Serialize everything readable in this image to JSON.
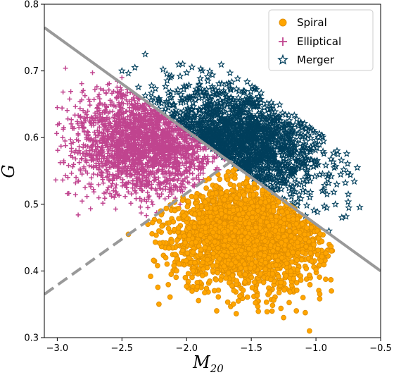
{
  "chart_data": {
    "type": "scatter",
    "title": "",
    "xlabel_main": "M",
    "xlabel_sub": "20",
    "ylabel": "G",
    "xlim": [
      -3.1,
      -0.5
    ],
    "ylim": [
      0.3,
      0.8
    ],
    "xticks": [
      -3.0,
      -2.5,
      -2.0,
      -1.5,
      -1.0,
      -0.5
    ],
    "xtick_labels": [
      "−3.0",
      "−2.5",
      "−2.0",
      "−1.5",
      "−1.0",
      "−0.5"
    ],
    "yticks": [
      0.3,
      0.4,
      0.5,
      0.6,
      0.7,
      0.8
    ],
    "ytick_labels": [
      "0.3",
      "0.4",
      "0.5",
      "0.6",
      "0.7",
      "0.8"
    ],
    "grid": false,
    "legend_position": "top-right",
    "series": [
      {
        "name": "Spiral",
        "marker": "circle",
        "color": "#FFA500",
        "edge_color": "#E08E00",
        "region": {
          "x": [
            -2.25,
            -0.9
          ],
          "y": [
            0.34,
            0.58
          ]
        },
        "sample_points": [
          [
            -1.05,
            0.31
          ],
          [
            -1.25,
            0.33
          ],
          [
            -1.6,
            0.355
          ],
          [
            -1.1,
            0.36
          ],
          [
            -0.88,
            0.37
          ],
          [
            -2.2,
            0.49
          ],
          [
            -2.3,
            0.47
          ],
          [
            -2.45,
            0.455
          ],
          [
            -0.88,
            0.43
          ],
          [
            -1.95,
            0.4
          ]
        ]
      },
      {
        "name": "Elliptical",
        "marker": "plus",
        "color": "#C0448F",
        "region": {
          "x": [
            -3.0,
            -1.65
          ],
          "y": [
            0.48,
            0.69
          ]
        },
        "sample_points": [
          [
            -3.0,
            0.645
          ],
          [
            -2.95,
            0.615
          ],
          [
            -2.95,
            0.565
          ],
          [
            -2.78,
            0.55
          ],
          [
            -2.55,
            0.515
          ],
          [
            -2.4,
            0.52
          ],
          [
            -2.35,
            0.505
          ],
          [
            -2.5,
            0.69
          ],
          [
            -2.3,
            0.495
          ],
          [
            -2.05,
            0.5
          ]
        ]
      },
      {
        "name": "Merger",
        "marker": "star",
        "color": "#003F5C",
        "region": {
          "x": [
            -2.5,
            -0.7
          ],
          "y": [
            0.46,
            0.72
          ]
        },
        "sample_points": [
          [
            -2.32,
            0.725
          ],
          [
            -2.4,
            0.705
          ],
          [
            -2.5,
            0.7
          ],
          [
            -0.68,
            0.555
          ],
          [
            -0.75,
            0.515
          ],
          [
            -0.85,
            0.5
          ],
          [
            -0.9,
            0.46
          ],
          [
            -0.8,
            0.48
          ],
          [
            -1.9,
            0.68
          ],
          [
            -1.6,
            0.66
          ]
        ]
      }
    ],
    "lines": [
      {
        "style": "solid",
        "color": "#999999",
        "x": [
          -3.1,
          -0.5
        ],
        "y": [
          0.765,
          0.4
        ]
      },
      {
        "style": "dashed",
        "color": "#999999",
        "x": [
          -3.1,
          -1.65
        ],
        "y": [
          0.365,
          0.565
        ]
      }
    ]
  }
}
